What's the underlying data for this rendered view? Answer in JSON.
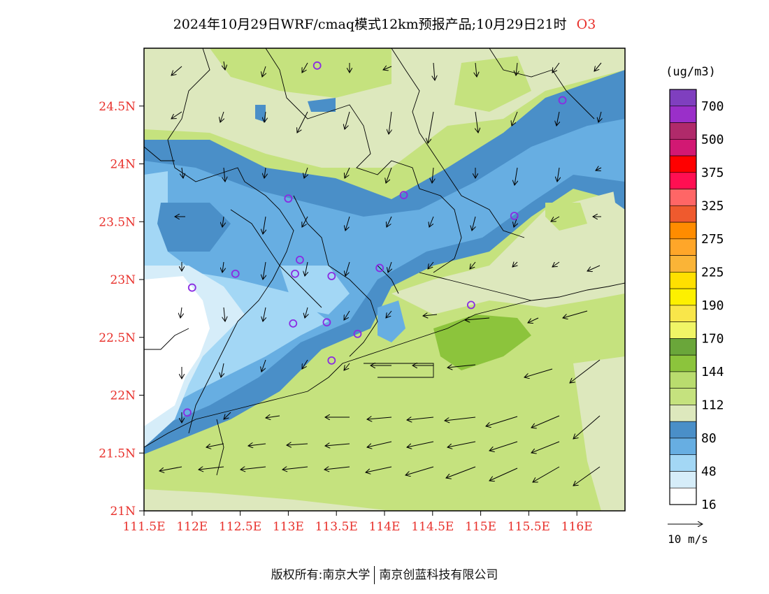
{
  "title": {
    "main": "2024年10月29日WRF/cmaq模式12km预报产品;10月29日21时",
    "species": "O3"
  },
  "map": {
    "lat_ticks": [
      "24.5N",
      "24N",
      "23.5N",
      "23N",
      "22.5N",
      "22N",
      "21.5N",
      "21N"
    ],
    "lon_ticks": [
      "111.5E",
      "112E",
      "112.5E",
      "113E",
      "113.5E",
      "114E",
      "114.5E",
      "115E",
      "115.5E",
      "116E"
    ],
    "lat_range": [
      21.0,
      25.0
    ],
    "lon_range": [
      111.5,
      116.5
    ]
  },
  "legend": {
    "unit": "(ug/m3)",
    "labels": [
      "700",
      "500",
      "375",
      "325",
      "275",
      "225",
      "190",
      "170",
      "144",
      "112",
      "80",
      "48",
      "16"
    ],
    "colors": [
      "#7f3fbf",
      "#9a2fc9",
      "#b02a6a",
      "#d21873",
      "#ff0000",
      "#ff0f52",
      "#ff6666",
      "#ef5a2e",
      "#ff8c00",
      "#ffa629",
      "#fab437",
      "#ffe000",
      "#fdf000",
      "#f9e64a",
      "#f0f566",
      "#6aa63a",
      "#8cc43c",
      "#b9dc6e",
      "#c5e27e",
      "#dde8bd",
      "#4a8fc8",
      "#67aee2",
      "#a3d7f5",
      "#d6edf9",
      "#ffffff"
    ]
  },
  "wind_scale": {
    "label": "10 m/s"
  },
  "stations": [
    {
      "lon": 113.3,
      "lat": 24.85
    },
    {
      "lon": 115.85,
      "lat": 24.55
    },
    {
      "lon": 113.0,
      "lat": 23.7
    },
    {
      "lon": 114.2,
      "lat": 23.73
    },
    {
      "lon": 115.35,
      "lat": 23.55
    },
    {
      "lon": 112.45,
      "lat": 23.05
    },
    {
      "lon": 112.0,
      "lat": 22.93
    },
    {
      "lon": 113.07,
      "lat": 23.05
    },
    {
      "lon": 113.12,
      "lat": 23.17
    },
    {
      "lon": 113.45,
      "lat": 23.03
    },
    {
      "lon": 113.95,
      "lat": 23.1
    },
    {
      "lon": 114.9,
      "lat": 22.78
    },
    {
      "lon": 113.05,
      "lat": 22.62
    },
    {
      "lon": 113.4,
      "lat": 22.63
    },
    {
      "lon": 113.72,
      "lat": 22.53
    },
    {
      "lon": 113.45,
      "lat": 22.3
    },
    {
      "lon": 111.95,
      "lat": 21.85
    }
  ],
  "footer": {
    "left": "版权所有:南京大学",
    "right": "南京创蓝科技有限公司"
  }
}
